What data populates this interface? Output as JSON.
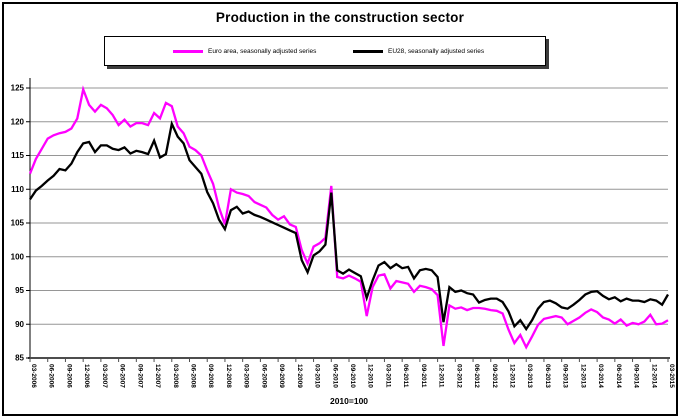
{
  "window": {
    "background": "#ffffff",
    "frame_border_color": "#000000"
  },
  "chart_data": {
    "type": "line",
    "title": "Production in the construction sector",
    "x_axis_note": "2010=100",
    "x_freq": "monthly",
    "x_start_label": "03-2006",
    "x_end_label": "03-2015",
    "x_tick_labels": [
      "03-2006",
      "06-2006",
      "09-2006",
      "12-2006",
      "03-2007",
      "06-2007",
      "09-2007",
      "12-2007",
      "03-2008",
      "06-2008",
      "09-2008",
      "12-2008",
      "03-2009",
      "06-2009",
      "09-2009",
      "12-2009",
      "03-2010",
      "06-2010",
      "09-2010",
      "12-2010",
      "03-2011",
      "06-2011",
      "09-2011",
      "12-2011",
      "03-2012",
      "06-2012",
      "09-2012",
      "12-2012",
      "03-2013",
      "06-2013",
      "09-2013",
      "12-2013",
      "03-2014",
      "06-2014",
      "09-2014",
      "12-2014",
      "03-2015"
    ],
    "y_axis": {
      "min": 85,
      "max": 125,
      "step": 5
    },
    "grid": true,
    "grid_color": "#969696",
    "axis_color": "#4d4d4d",
    "legend_position": "top",
    "series": [
      {
        "name": "Euro area, seasonally adjusted series",
        "color": "#FF00FF",
        "values": [
          112.3,
          114.5,
          116,
          117.5,
          118,
          118.3,
          118.5,
          119,
          120.5,
          124.8,
          122.5,
          121.5,
          122.5,
          122,
          121,
          119.5,
          120.3,
          119.3,
          119.8,
          119.8,
          119.5,
          121.3,
          120.5,
          122.8,
          122.3,
          119.3,
          118.3,
          116.3,
          115.8,
          115,
          112.8,
          110.8,
          107.3,
          104.8,
          110,
          109.5,
          109.3,
          109,
          108.1,
          107.7,
          107.3,
          106.2,
          105.5,
          106,
          104.8,
          104.4,
          101,
          99,
          101.5,
          102,
          102.8,
          110.5,
          97,
          96.8,
          97.2,
          96.8,
          96.3,
          91.2,
          95.5,
          97.2,
          97.4,
          95.3,
          96.4,
          96.2,
          96,
          94.8,
          95.7,
          95.5,
          95.2,
          94.3,
          86.8,
          92.8,
          92.3,
          92.5,
          92.1,
          92.4,
          92.4,
          92.3,
          92.1,
          92,
          91.6,
          89.2,
          87.2,
          88.4,
          86.6,
          88.2,
          89.9,
          90.8,
          91,
          91.2,
          91,
          90,
          90.5,
          91,
          91.7,
          92.2,
          91.8,
          91,
          90.7,
          90.1,
          90.7,
          89.8,
          90.2,
          90,
          90.4,
          91.4,
          90,
          90.1,
          90.6
        ]
      },
      {
        "name": "EU28, seasonally adjusted series",
        "color": "#000000",
        "values": [
          108.5,
          109.8,
          110.5,
          111.3,
          112,
          113,
          112.8,
          113.8,
          115.5,
          116.8,
          117,
          115.5,
          116.5,
          116.5,
          116,
          115.8,
          116.2,
          115.3,
          115.7,
          115.5,
          115.2,
          117.2,
          114.7,
          115.2,
          119.7,
          117.8,
          116.8,
          114.3,
          113.3,
          112.3,
          109.6,
          107.9,
          105.5,
          104.1,
          106.9,
          107.4,
          106.4,
          106.7,
          106.2,
          105.9,
          105.5,
          105.1,
          104.7,
          104.3,
          103.9,
          103.5,
          99.5,
          97.7,
          100.2,
          100.8,
          101.8,
          109.5,
          98,
          97.5,
          98.1,
          97.6,
          97.1,
          93.9,
          96.5,
          98.7,
          99.2,
          98.3,
          98.9,
          98.3,
          98.5,
          96.8,
          98,
          98.2,
          98,
          97,
          90.3,
          95.5,
          94.8,
          95,
          94.6,
          94.4,
          93.2,
          93.6,
          93.8,
          93.8,
          93.3,
          91.9,
          89.7,
          90.6,
          89.3,
          90.6,
          92.3,
          93.3,
          93.5,
          93.1,
          92.5,
          92.3,
          92.9,
          93.6,
          94.4,
          94.8,
          94.9,
          94.2,
          93.7,
          94,
          93.4,
          93.8,
          93.5,
          93.5,
          93.3,
          93.7,
          93.5,
          92.9,
          94.4
        ]
      }
    ]
  }
}
